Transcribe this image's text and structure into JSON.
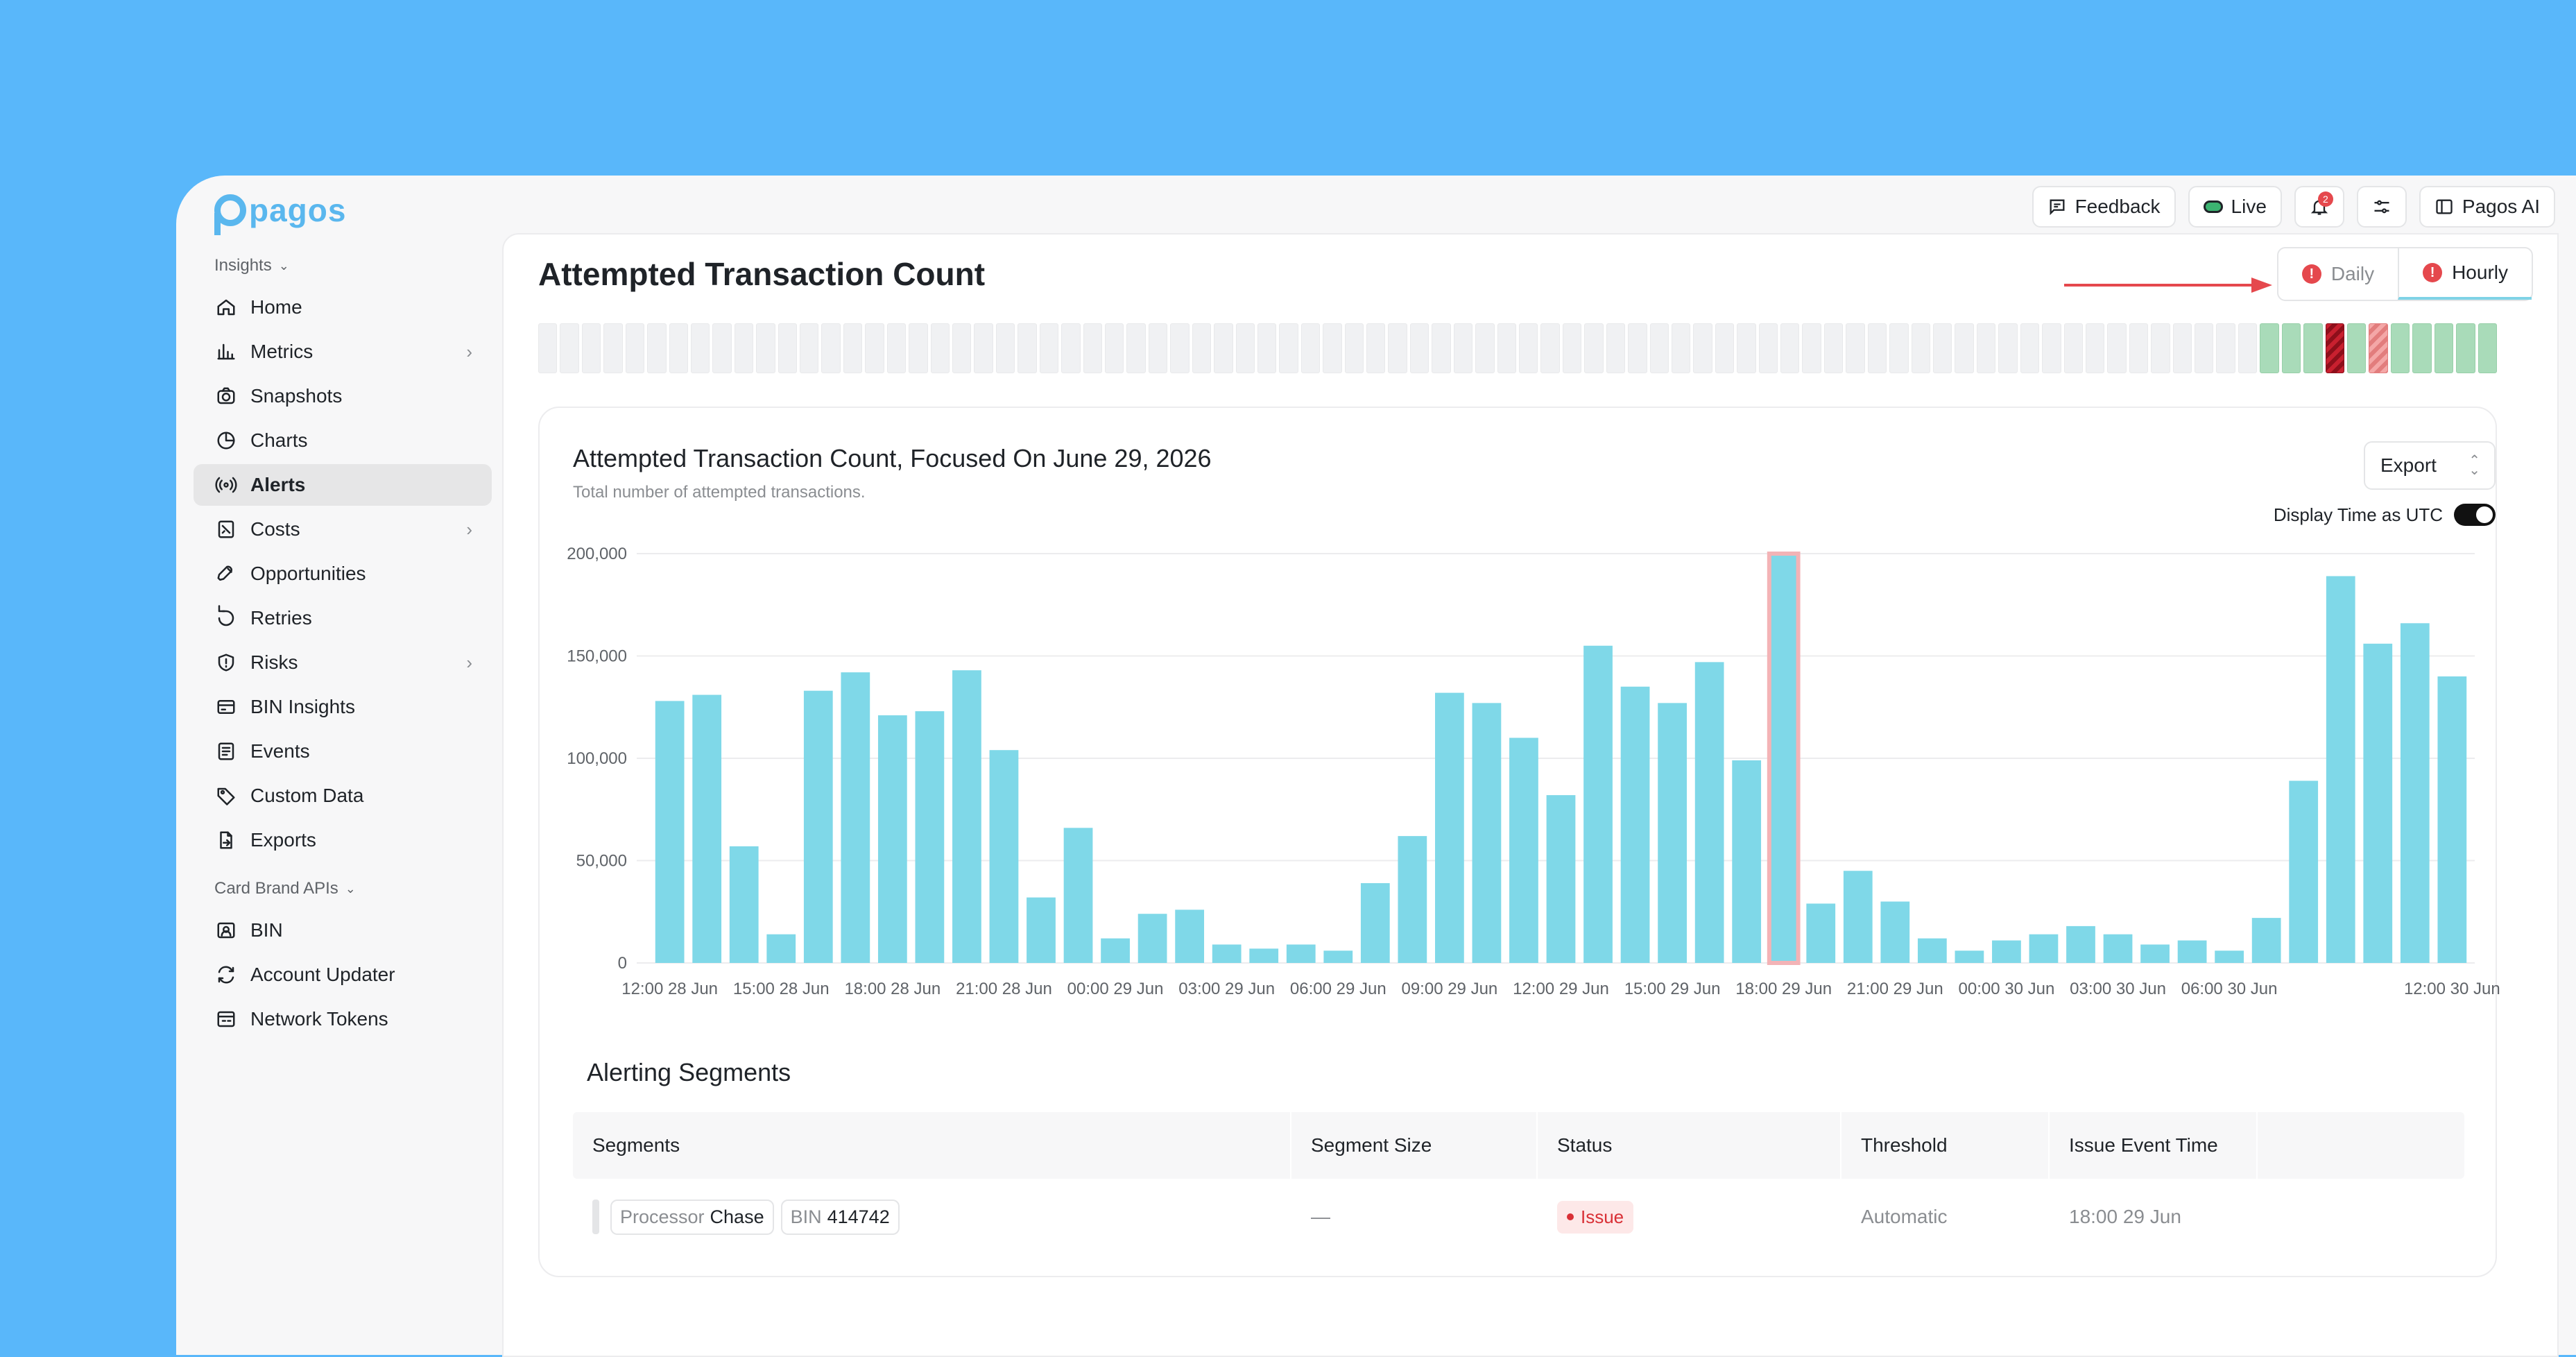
{
  "app": {
    "logo_text": "pagos"
  },
  "topbar": {
    "feedback_label": "Feedback",
    "live_label": "Live",
    "notifications_badge": "2",
    "pagos_ai_label": "Pagos AI"
  },
  "sidebar": {
    "group_insights": "Insights",
    "group_card_brand": "Card Brand APIs",
    "items": [
      {
        "label": "Home",
        "icon": "home-icon"
      },
      {
        "label": "Metrics",
        "icon": "bar-chart-icon",
        "has_children": true
      },
      {
        "label": "Snapshots",
        "icon": "camera-icon"
      },
      {
        "label": "Charts",
        "icon": "pie-chart-icon"
      },
      {
        "label": "Alerts",
        "icon": "broadcast-icon",
        "active": true
      },
      {
        "label": "Costs",
        "icon": "receipt-icon",
        "has_children": true
      },
      {
        "label": "Opportunities",
        "icon": "rocket-icon"
      },
      {
        "label": "Retries",
        "icon": "retry-icon"
      },
      {
        "label": "Risks",
        "icon": "shield-alert-icon",
        "has_children": true
      },
      {
        "label": "BIN Insights",
        "icon": "card-icon"
      },
      {
        "label": "Events",
        "icon": "list-icon"
      },
      {
        "label": "Custom Data",
        "icon": "tag-icon"
      },
      {
        "label": "Exports",
        "icon": "file-export-icon"
      }
    ],
    "card_items": [
      {
        "label": "BIN",
        "icon": "id-card-icon"
      },
      {
        "label": "Account Updater",
        "icon": "refresh-icon"
      },
      {
        "label": "Network Tokens",
        "icon": "token-icon"
      }
    ]
  },
  "page": {
    "title": "Attempted Transaction Count",
    "toggle_daily": "Daily",
    "toggle_hourly": "Hourly",
    "timeline_states": [
      "empty",
      "empty",
      "empty",
      "empty",
      "empty",
      "empty",
      "empty",
      "empty",
      "empty",
      "empty",
      "empty",
      "empty",
      "empty",
      "empty",
      "empty",
      "empty",
      "empty",
      "empty",
      "empty",
      "empty",
      "empty",
      "empty",
      "empty",
      "empty",
      "empty",
      "empty",
      "empty",
      "empty",
      "empty",
      "empty",
      "empty",
      "empty",
      "empty",
      "empty",
      "empty",
      "empty",
      "empty",
      "empty",
      "empty",
      "empty",
      "empty",
      "empty",
      "empty",
      "empty",
      "empty",
      "empty",
      "empty",
      "empty",
      "empty",
      "empty",
      "empty",
      "empty",
      "empty",
      "empty",
      "empty",
      "empty",
      "empty",
      "empty",
      "empty",
      "empty",
      "empty",
      "empty",
      "empty",
      "empty",
      "empty",
      "empty",
      "empty",
      "empty",
      "empty",
      "empty",
      "empty",
      "empty",
      "empty",
      "empty",
      "empty",
      "empty",
      "empty",
      "empty",
      "empty",
      "ok",
      "ok",
      "ok",
      "bad",
      "ok",
      "warn",
      "ok",
      "ok",
      "ok",
      "ok",
      "ok"
    ]
  },
  "card": {
    "title": "Attempted Transaction Count, Focused On June 29, 2026",
    "subtitle": "Total number of attempted transactions.",
    "export_label": "Export",
    "utc_label": "Display Time as UTC"
  },
  "chart_data": {
    "type": "bar",
    "ylim": [
      0,
      200000
    ],
    "yticks": [
      "0",
      "50,000",
      "100,000",
      "150,000",
      "200,000"
    ],
    "xticks": [
      "12:00 28 Jun",
      "15:00 28 Jun",
      "18:00 28 Jun",
      "21:00 28 Jun",
      "00:00 29 Jun",
      "03:00 29 Jun",
      "06:00 29 Jun",
      "09:00 29 Jun",
      "12:00 29 Jun",
      "15:00 29 Jun",
      "18:00 29 Jun",
      "21:00 29 Jun",
      "00:00 30 Jun",
      "03:00 30 Jun",
      "06:00 30 Jun",
      "",
      "12:00 30 Jun"
    ],
    "values": [
      128000,
      131000,
      57000,
      14000,
      133000,
      142000,
      121000,
      123000,
      143000,
      104000,
      32000,
      66000,
      12000,
      24000,
      26000,
      9000,
      7000,
      9000,
      6000,
      39000,
      62000,
      132000,
      127000,
      110000,
      82000,
      155000,
      135000,
      127000,
      147000,
      99000,
      200000,
      29000,
      45000,
      30000,
      12000,
      6000,
      11000,
      14000,
      18000,
      14000,
      9000,
      11000,
      6000,
      22000,
      89000,
      189000,
      156000,
      166000,
      140000
    ],
    "highlight_index": 30,
    "color": "#7fd8e8",
    "highlight_color": "#f3b3b6"
  },
  "segments": {
    "title": "Alerting Segments",
    "headers": [
      "Segments",
      "Segment Size",
      "Status",
      "Threshold",
      "Issue Event Time",
      ""
    ],
    "row": {
      "processor_key": "Processor",
      "processor_val": "Chase",
      "bin_key": "BIN",
      "bin_val": "414742",
      "size": "—",
      "status": "Issue",
      "threshold": "Automatic",
      "time": "18:00 29 Jun"
    }
  }
}
